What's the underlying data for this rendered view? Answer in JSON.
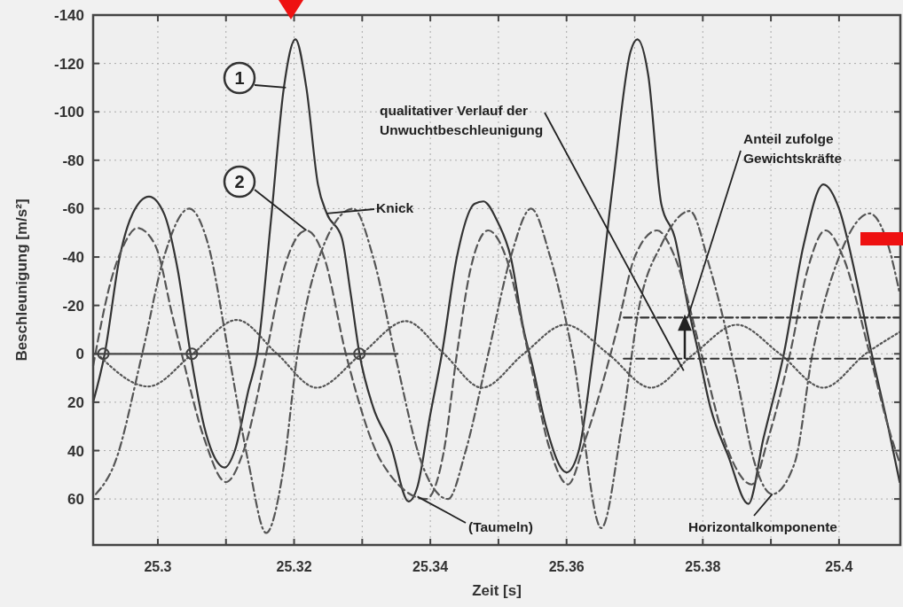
{
  "chart_data": {
    "type": "line",
    "xlabel": "Zeit [s]",
    "ylabel": "Beschleunigung [m/s²]",
    "xlim": [
      25.2905,
      25.409
    ],
    "ylim": [
      79,
      -140
    ],
    "xticks": [
      25.3,
      {
        "value": 25.31,
        "label": null
      },
      25.32,
      {
        "value": 25.33,
        "label": null
      },
      25.34,
      {
        "value": 25.35,
        "label": null
      },
      25.36,
      {
        "value": 25.37,
        "label": null
      },
      25.38,
      {
        "value": 25.39,
        "label": null
      },
      25.4
    ],
    "yticks": [
      -140,
      -120,
      -100,
      -80,
      -60,
      -40,
      -20,
      0,
      20,
      40,
      60
    ],
    "grid": true,
    "series": [
      {
        "color": "#333333",
        "line_style": "solid",
        "marker": "none",
        "x": [
          25.2905,
          25.2922,
          25.2944,
          25.2963,
          25.2987,
          25.3009,
          25.3029,
          25.3048,
          25.3068,
          25.3088,
          25.3098,
          25.3113,
          25.3133,
          25.3146,
          25.3166,
          25.3185,
          25.3202,
          25.3218,
          25.3235,
          25.3248,
          25.327,
          25.3283,
          25.3296,
          25.3316,
          25.3342,
          25.3368,
          25.3381,
          25.34,
          25.3417,
          25.3439,
          25.3465,
          25.3478,
          25.3498,
          25.3518,
          25.3537,
          25.355,
          25.357,
          25.36,
          25.3618,
          25.3639,
          25.3668,
          25.3694,
          25.3704,
          25.372,
          25.3739,
          25.3759,
          25.3778,
          25.3794,
          25.3811,
          25.3837,
          25.3867,
          25.3889,
          25.3919,
          25.3948,
          25.3977,
          25.4,
          25.4026,
          25.4048,
          25.4072,
          25.4089
        ],
        "values": [
          20,
          0,
          -40,
          -58,
          -65,
          -58,
          -35,
          0,
          30,
          45,
          47,
          40,
          15,
          0,
          -55,
          -110,
          -130,
          -110,
          -70,
          -58,
          -48,
          -25,
          0,
          22,
          38,
          61,
          55,
          25,
          0,
          -40,
          -62,
          -63,
          -55,
          -40,
          -10,
          5,
          30,
          49,
          40,
          0,
          -70,
          -125,
          -130,
          -115,
          -62,
          -48,
          -20,
          0,
          22,
          42,
          62,
          35,
          0,
          -45,
          -70,
          -60,
          -30,
          0,
          30,
          53
        ]
      },
      {
        "color": "#555555",
        "line_style": "dashed",
        "marker": "none",
        "x": [
          25.2905,
          25.2931,
          25.295,
          25.297,
          25.2996,
          25.3022,
          25.3035,
          25.3068,
          25.31,
          25.3126,
          25.3159,
          25.3185,
          25.3218,
          25.3244,
          25.3276,
          25.3329,
          25.3394,
          25.342,
          25.3439,
          25.3459,
          25.3485,
          25.3511,
          25.3544,
          25.3576,
          25.3602,
          25.3628,
          25.3674,
          25.37,
          25.3733,
          25.3759,
          25.3798,
          25.3837,
          25.3872,
          25.3896,
          25.3928,
          25.3954,
          25.398,
          25.4006,
          25.4045,
          25.4072,
          25.4089
        ],
        "values": [
          5,
          -30,
          -45,
          -52,
          -45,
          -15,
          0,
          35,
          53,
          40,
          0,
          -35,
          -51,
          -40,
          0,
          45,
          60,
          40,
          0,
          -35,
          -51,
          -40,
          0,
          40,
          54,
          35,
          -10,
          -40,
          -51,
          -40,
          0,
          40,
          54,
          35,
          0,
          -35,
          -51,
          -40,
          0,
          30,
          45
        ]
      },
      {
        "color": "#555555",
        "line_style": "dashdot",
        "marker": "none",
        "x": [
          25.2909,
          25.2937,
          25.2977,
          25.3009,
          25.3046,
          25.3074,
          25.3104,
          25.3133,
          25.3159,
          25.3183,
          25.3205,
          25.3237,
          25.3287,
          25.3316,
          25.3348,
          25.3387,
          25.3426,
          25.3452,
          25.3485,
          25.3518,
          25.3548,
          25.3576,
          25.3609,
          25.3651,
          25.3681,
          25.3707,
          25.3739,
          25.3781,
          25.3811,
          25.385,
          25.3876,
          25.3902,
          25.3935,
          25.3961,
          25.4,
          25.4045,
          25.4072,
          25.4089
        ],
        "values": [
          58,
          45,
          0,
          -40,
          -60,
          -45,
          0,
          45,
          74,
          50,
          0,
          -40,
          -60,
          -40,
          0,
          45,
          60,
          40,
          0,
          -40,
          -60,
          -40,
          0,
          72,
          30,
          -20,
          -45,
          -59,
          -35,
          10,
          45,
          58,
          45,
          0,
          -40,
          -58,
          -45,
          -25
        ]
      },
      {
        "color": "#555555",
        "line_style": "dotted",
        "marker": "none",
        "x": [
          25.2911,
          25.2986,
          25.3051,
          25.3116,
          25.3175,
          25.3233,
          25.3299,
          25.3364,
          25.342,
          25.3476,
          25.3537,
          25.3598,
          25.3661,
          25.3724,
          25.3787,
          25.385,
          25.3913,
          25.3977,
          25.4039,
          25.4089
        ],
        "values": [
          0,
          13.5,
          0,
          -14,
          0,
          14,
          0,
          -13.5,
          0,
          14,
          0,
          -12,
          0,
          14,
          0,
          -12,
          0,
          14,
          0,
          -9
        ]
      },
      {
        "color": "#444444",
        "line_style": "solid",
        "marker": "none",
        "x": [
          25.2905,
          25.3352
        ],
        "values": [
          0,
          0
        ]
      },
      {
        "type": "scatter",
        "color": "#444444",
        "marker": "circle",
        "x": [
          25.292,
          25.305,
          25.3296
        ],
        "values": [
          0,
          0,
          0
        ]
      },
      {
        "color": "#333333",
        "line_style": "dashdot",
        "marker": "none",
        "x": [
          25.3684,
          25.4089
        ],
        "values": [
          -15,
          -15
        ]
      },
      {
        "color": "#333333",
        "line_style": "dashed",
        "marker": "none",
        "x": [
          25.3684,
          25.4089
        ],
        "values": [
          2,
          2
        ]
      }
    ],
    "annotations": [
      {
        "text": "1",
        "x": 25.3188,
        "y": -110
      },
      {
        "text": "2",
        "x": 25.3218,
        "y": -51
      },
      {
        "text": "Knick",
        "x": 25.3248,
        "y": -58
      },
      {
        "text": "qualitativer Verlauf der\nUnwuchtbeschleunigung",
        "x": 25.3772,
        "y": 7
      },
      {
        "text": "Anteil zufolge\nGewichtskräfte",
        "x": 25.3778,
        "y": -15
      },
      {
        "text": "(Taumeln)",
        "x": 25.3381,
        "y": 59
      },
      {
        "text": "Horizontalkomponente",
        "x": 25.3902,
        "y": 58
      }
    ]
  }
}
